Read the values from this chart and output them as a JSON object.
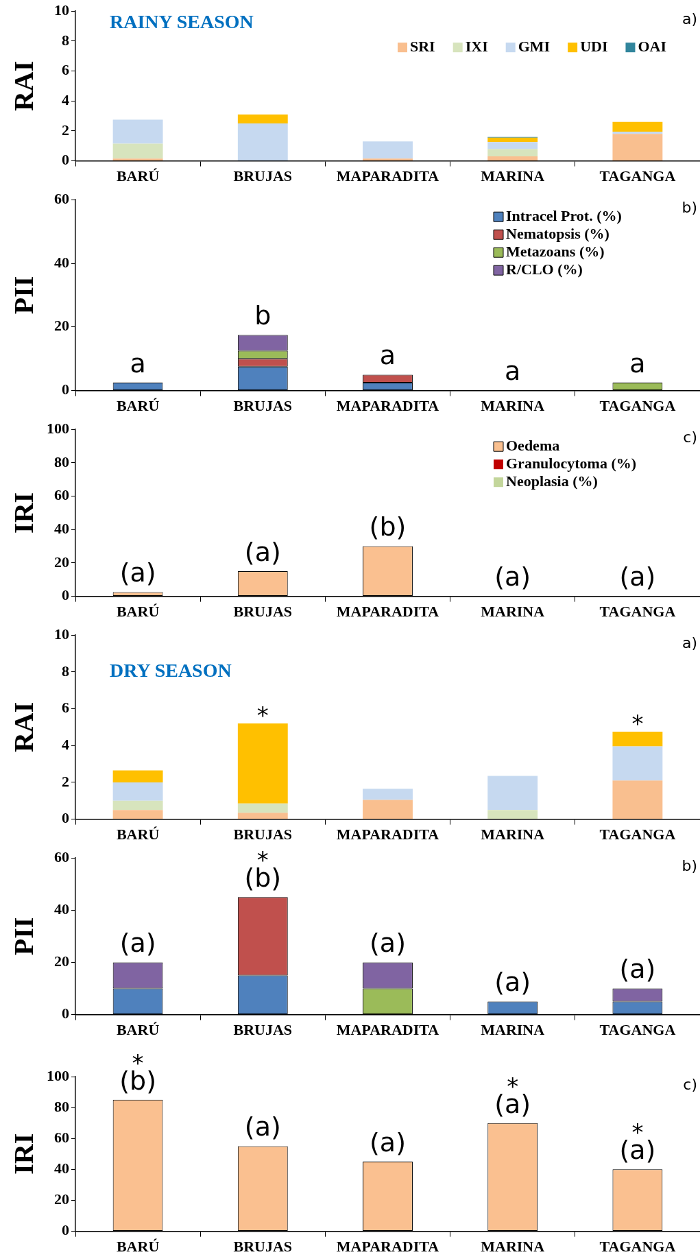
{
  "chart_data": [
    {
      "type": "bar",
      "stacked": true,
      "title": "RAINY SEASON",
      "ylabel": "RAI",
      "categories": [
        "BARÚ",
        "BRUJAS",
        "MAPARADITA",
        "MARINA",
        "TAGANGA"
      ],
      "ylim": [
        0,
        10
      ],
      "yticks": [
        0,
        2,
        4,
        6,
        8,
        10
      ],
      "grid": false,
      "legend": "top right",
      "annotations": [
        "a)"
      ],
      "series": [
        {
          "name": "SRI",
          "color": "#f9bf8f",
          "values": [
            0.15,
            0,
            0.15,
            0.3,
            1.8
          ]
        },
        {
          "name": "IXI",
          "color": "#d7e4bd",
          "values": [
            1.0,
            0,
            0,
            0.5,
            0
          ]
        },
        {
          "name": "GMI",
          "color": "#c6d9f0",
          "values": [
            1.6,
            2.5,
            1.15,
            0.45,
            0.15
          ]
        },
        {
          "name": "UDI",
          "color": "#ffc000",
          "values": [
            0,
            0.6,
            0,
            0.3,
            0.65
          ]
        },
        {
          "name": "OAI",
          "color": "#31859c",
          "values": [
            0,
            0,
            0,
            0.05,
            0
          ]
        }
      ]
    },
    {
      "type": "bar",
      "stacked": true,
      "ylabel": "PII",
      "categories": [
        "BARÚ",
        "BRUJAS",
        "MAPARADITA",
        "MARINA",
        "TAGANGA"
      ],
      "ylim": [
        0,
        60
      ],
      "yticks": [
        0,
        20,
        40,
        60
      ],
      "grid": false,
      "legend": "top right",
      "annotations": [
        "b)",
        {
          "text": "a",
          "x": "BARÚ",
          "y": 2.5
        },
        {
          "text": "b",
          "x": "BRUJAS",
          "y": 17.5
        },
        {
          "text": "a",
          "x": "MAPARADITA",
          "y": 5
        },
        {
          "text": "a",
          "x": "MARINA",
          "y": 0
        },
        {
          "text": "a",
          "x": "TAGANGA",
          "y": 2.5
        }
      ],
      "series": [
        {
          "name": "Intracel Prot. (%)",
          "color": "#4f81bd",
          "values": [
            2.5,
            7.5,
            2.5,
            0,
            0
          ]
        },
        {
          "name": "Nematopsis (%)",
          "color": "#c0504d",
          "values": [
            0,
            2.5,
            2.5,
            0,
            0
          ]
        },
        {
          "name": "Metazoans (%)",
          "color": "#9bbb59",
          "values": [
            0,
            2.5,
            0,
            0,
            2.5
          ]
        },
        {
          "name": "R/CLO (%)",
          "color": "#8064a2",
          "values": [
            0,
            5,
            0,
            0,
            0
          ]
        }
      ]
    },
    {
      "type": "bar",
      "stacked": true,
      "ylabel": "IRI",
      "categories": [
        "BARÚ",
        "BRUJAS",
        "MAPARADITA",
        "MARINA",
        "TAGANGA"
      ],
      "ylim": [
        0,
        100
      ],
      "yticks": [
        0,
        20,
        40,
        60,
        80,
        100
      ],
      "grid": false,
      "legend": "top right",
      "annotations": [
        "c)",
        {
          "text": "(a)",
          "x": "BARÚ",
          "y": 2.5
        },
        {
          "text": "(a)",
          "x": "BRUJAS",
          "y": 15
        },
        {
          "text": "(b)",
          "x": "MAPARADITA",
          "y": 30
        },
        {
          "text": "(a)",
          "x": "MARINA",
          "y": 0
        },
        {
          "text": "(a)",
          "x": "TAGANGA",
          "y": 0
        }
      ],
      "series": [
        {
          "name": "Oedema",
          "color": "#fac090",
          "values": [
            2.5,
            15,
            30,
            0,
            0
          ]
        },
        {
          "name": "Granulocytoma (%)",
          "color": "#c00000",
          "values": [
            0,
            0,
            0,
            0,
            0
          ]
        },
        {
          "name": "Neoplasia (%)",
          "color": "#c3d69b",
          "values": [
            0,
            0,
            0,
            0,
            0
          ]
        }
      ]
    },
    {
      "type": "bar",
      "stacked": true,
      "title": "DRY SEASON",
      "ylabel": "RAI",
      "categories": [
        "BARÚ",
        "BRUJAS",
        "MAPARADITA",
        "MARINA",
        "TAGANGA"
      ],
      "ylim": [
        0,
        10
      ],
      "yticks": [
        0,
        2,
        4,
        6,
        8,
        10
      ],
      "grid": false,
      "annotations": [
        "a)",
        {
          "text": "*",
          "x": "BRUJAS",
          "y": 5.2
        },
        {
          "text": "*",
          "x": "TAGANGA",
          "y": 4.75
        }
      ],
      "series": [
        {
          "color": "#f9bf8f",
          "values": [
            0.5,
            0.35,
            1.05,
            0,
            2.1
          ]
        },
        {
          "color": "#d7e4bd",
          "values": [
            0.5,
            0.5,
            0,
            0.5,
            0
          ]
        },
        {
          "color": "#c6d9f0",
          "values": [
            1.0,
            0,
            0.6,
            1.85,
            1.85
          ]
        },
        {
          "color": "#ffc000",
          "values": [
            0.65,
            4.35,
            0,
            0,
            0.8
          ]
        }
      ]
    },
    {
      "type": "bar",
      "stacked": true,
      "ylabel": "PII",
      "categories": [
        "BARÚ",
        "BRUJAS",
        "MAPARADITA",
        "MARINA",
        "TAGANGA"
      ],
      "ylim": [
        0,
        60
      ],
      "yticks": [
        0,
        20,
        40,
        60
      ],
      "grid": false,
      "annotations": [
        "b)",
        {
          "text": "(a)",
          "x": "BARÚ",
          "y": 20
        },
        {
          "text": "(b)",
          "x": "BRUJAS",
          "y": 45
        },
        {
          "text": "*",
          "x": "BRUJAS",
          "y": 45
        },
        {
          "text": "(a)",
          "x": "MAPARADITA",
          "y": 20
        },
        {
          "text": "(a)",
          "x": "MARINA",
          "y": 5
        },
        {
          "text": "(a)",
          "x": "TAGANGA",
          "y": 10
        }
      ],
      "series": [
        {
          "color": "#4f81bd",
          "values": [
            10,
            15,
            0,
            5,
            5
          ]
        },
        {
          "color": "#c0504d",
          "values": [
            0,
            30,
            0,
            0,
            0
          ]
        },
        {
          "color": "#9bbb59",
          "values": [
            0,
            0,
            10,
            0,
            0
          ]
        },
        {
          "color": "#8064a2",
          "values": [
            10,
            0,
            10,
            0,
            5
          ]
        }
      ]
    },
    {
      "type": "bar",
      "ylabel": "IRI",
      "categories": [
        "BARÚ",
        "BRUJAS",
        "MAPARADITA",
        "MARINA",
        "TAGANGA"
      ],
      "ylim": [
        0,
        100
      ],
      "yticks": [
        0,
        20,
        40,
        60,
        80,
        100
      ],
      "grid": false,
      "annotations": [
        "c)",
        {
          "text": "(b)",
          "x": "BARÚ",
          "y": 85
        },
        {
          "text": "*",
          "x": "BARÚ",
          "y": 85
        },
        {
          "text": "(a)",
          "x": "BRUJAS",
          "y": 55
        },
        {
          "text": "(a)",
          "x": "MAPARADITA",
          "y": 45
        },
        {
          "text": "(a)",
          "x": "MARINA",
          "y": 70
        },
        {
          "text": "*",
          "x": "MARINA",
          "y": 70
        },
        {
          "text": "(a)",
          "x": "TAGANGA",
          "y": 40
        },
        {
          "text": "*",
          "x": "TAGANGA",
          "y": 40
        }
      ],
      "series": [
        {
          "color": "#fac090",
          "values": [
            85,
            55,
            45,
            70,
            40
          ]
        }
      ]
    }
  ]
}
